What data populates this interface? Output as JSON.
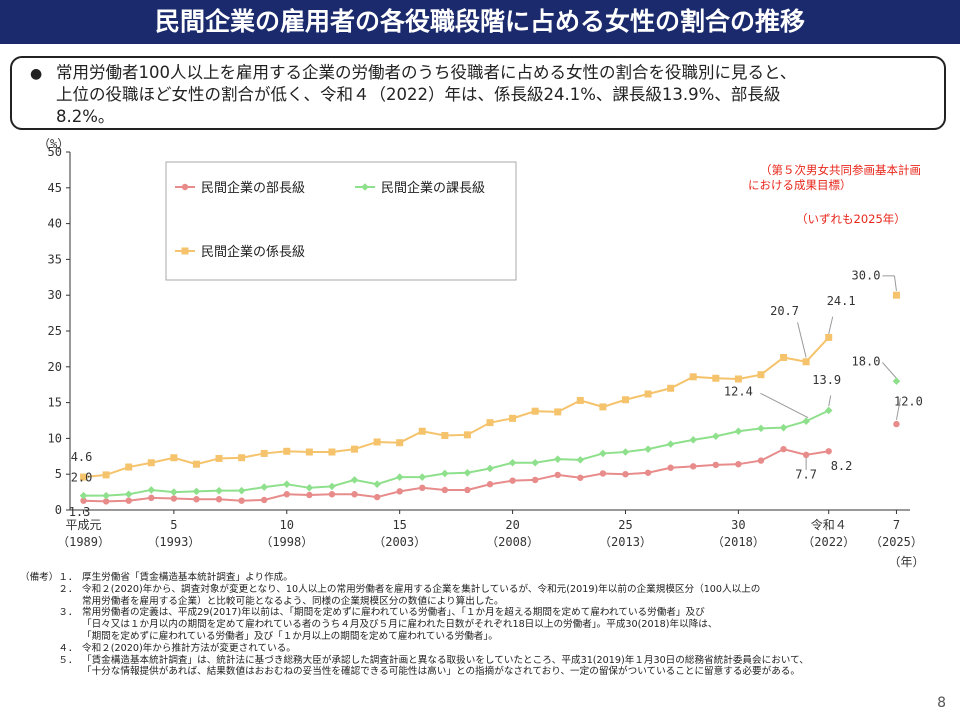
{
  "title": "民間企業の雇用者の各役職段階に占める女性の割合の推移",
  "summary": {
    "bullet": "●",
    "line1": "常用労働者100人以上を雇用する企業の労働者のうち役職者に占める女性の割合を役職別に見ると、",
    "line2": "上位の役職ほど女性の割合が低く、令和４（2022）年は、係長級24.1%、課長級13.9%、部長級",
    "line3": "8.2%。"
  },
  "chart_data": {
    "type": "line",
    "y_unit": "（%）",
    "x_unit": "（年）",
    "ylim": [
      0,
      50
    ],
    "yticks": [
      0,
      5,
      10,
      15,
      20,
      25,
      30,
      35,
      40,
      45,
      50
    ],
    "grid": false,
    "legend_position": "top-left",
    "x": [
      1989,
      1990,
      1991,
      1992,
      1993,
      1994,
      1995,
      1996,
      1997,
      1998,
      1999,
      2000,
      2001,
      2002,
      2003,
      2004,
      2005,
      2006,
      2007,
      2008,
      2009,
      2010,
      2011,
      2012,
      2013,
      2014,
      2015,
      2016,
      2017,
      2018,
      2019,
      2020,
      2021,
      2022
    ],
    "xticks": [
      {
        "year": 1989,
        "era": "平成元",
        "western": "（1989）"
      },
      {
        "year": 1993,
        "era": "5",
        "western": "（1993）"
      },
      {
        "year": 1998,
        "era": "10",
        "western": "（1998）"
      },
      {
        "year": 2003,
        "era": "15",
        "western": "（2003）"
      },
      {
        "year": 2008,
        "era": "20",
        "western": "（2008）"
      },
      {
        "year": 2013,
        "era": "25",
        "western": "（2013）"
      },
      {
        "year": 2018,
        "era": "30",
        "western": "（2018）"
      },
      {
        "year": 2022,
        "era": "令和４",
        "western": "（2022）"
      },
      {
        "year": 2025,
        "era": "7",
        "western": "（2025）"
      }
    ],
    "series": [
      {
        "name": "民間企業の部長級",
        "color": "#e88b8b",
        "values": [
          1.3,
          1.2,
          1.3,
          1.7,
          1.6,
          1.5,
          1.5,
          1.3,
          1.4,
          2.2,
          2.1,
          2.2,
          2.2,
          1.8,
          2.6,
          3.1,
          2.8,
          2.8,
          3.6,
          4.1,
          4.2,
          4.9,
          4.5,
          5.1,
          5.0,
          5.2,
          5.9,
          6.1,
          6.3,
          6.4,
          6.9,
          8.5,
          7.7,
          8.2
        ],
        "target": {
          "year": 2025,
          "value": 12.0
        }
      },
      {
        "name": "民間企業の課長級",
        "color": "#8ee08c",
        "values": [
          2.0,
          2.0,
          2.2,
          2.8,
          2.5,
          2.6,
          2.7,
          2.7,
          3.2,
          3.6,
          3.1,
          3.3,
          4.2,
          3.6,
          4.6,
          4.6,
          5.1,
          5.2,
          5.8,
          6.6,
          6.6,
          7.1,
          7.0,
          7.9,
          8.1,
          8.5,
          9.2,
          9.8,
          10.3,
          11.0,
          11.4,
          11.5,
          12.4,
          13.9
        ],
        "target": {
          "year": 2025,
          "value": 18.0
        }
      },
      {
        "name": "民間企業の係長級",
        "color": "#f5c36b",
        "values": [
          4.6,
          4.9,
          6.0,
          6.6,
          7.3,
          6.4,
          7.2,
          7.3,
          7.9,
          8.2,
          8.1,
          8.1,
          8.5,
          9.5,
          9.4,
          11.0,
          10.4,
          10.5,
          12.2,
          12.8,
          13.8,
          13.7,
          15.3,
          14.4,
          15.4,
          16.2,
          17.0,
          18.6,
          18.4,
          18.3,
          18.9,
          21.3,
          20.7,
          24.1
        ],
        "target": {
          "year": 2025,
          "value": 30.0
        }
      }
    ],
    "data_labels": [
      {
        "text": "4.6"
      },
      {
        "text": "2.0"
      },
      {
        "text": "1.3"
      },
      {
        "text": "20.7"
      },
      {
        "text": "24.1"
      },
      {
        "text": "12.4"
      },
      {
        "text": "13.9"
      },
      {
        "text": "7.7"
      },
      {
        "text": "8.2"
      },
      {
        "text": "30.0"
      },
      {
        "text": "18.0"
      },
      {
        "text": "12.0"
      }
    ],
    "target_note": {
      "line1": "（第５次男女共同参画基本計画",
      "line2": "における成果目標）",
      "line3": "（いずれも2025年）"
    }
  },
  "notes": [
    {
      "prefix": "（備考）１．",
      "text": "厚生労働省「賃金構造基本統計調査」より作成。"
    },
    {
      "prefix": "　　　　２．",
      "text": "令和２(2020)年から、調査対象が変更となり、10人以上の常用労働者を雇用する企業を集計しているが、令和元(2019)年以前の企業規模区分（100人以上の"
    },
    {
      "prefix": "",
      "text": "常用労働者を雇用する企業）と比較可能となるよう、同様の企業規模区分の数値により算出した。"
    },
    {
      "prefix": "　　　　３．",
      "text": "常用労働者の定義は、平成29(2017)年以前は、「期間を定めずに雇われている労働者」、「１か月を超える期間を定めて雇われている労働者」及び"
    },
    {
      "prefix": "",
      "text": "「日々又は１か月以内の期間を定めて雇われている者のうち４月及び５月に雇われた日数がそれぞれ18日以上の労働者」。平成30(2018)年以降は、"
    },
    {
      "prefix": "",
      "text": "「期間を定めずに雇われている労働者」及び「１か月以上の期間を定めて雇われている労働者」。"
    },
    {
      "prefix": "　　　　４．",
      "text": "令和２(2020)年から推計方法が変更されている。"
    },
    {
      "prefix": "　　　　５．",
      "text": "「賃金構造基本統計調査」は、統計法に基づき総務大臣が承認した調査計画と異なる取扱いをしていたところ、平成31(2019)年１月30日の総務省統計委員会において、"
    },
    {
      "prefix": "",
      "text": "「十分な情報提供があれば、結果数値はおおむねの妥当性を確認できる可能性は高い」との指摘がなされており、一定の留保がついていることに留意する必要がある。"
    }
  ],
  "page_number": "8"
}
